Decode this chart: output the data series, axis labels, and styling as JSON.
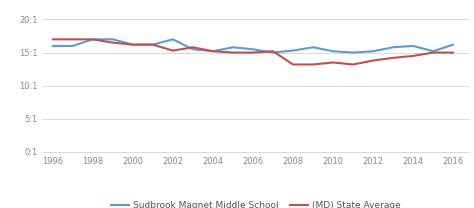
{
  "years": [
    1996,
    1997,
    1998,
    1999,
    2000,
    2001,
    2002,
    2003,
    2004,
    2005,
    2006,
    2007,
    2008,
    2009,
    2010,
    2011,
    2012,
    2013,
    2014,
    2015,
    2016
  ],
  "sudbrook": [
    16.0,
    16.0,
    17.0,
    17.0,
    16.2,
    16.2,
    17.0,
    15.5,
    15.2,
    15.8,
    15.5,
    15.0,
    15.3,
    15.8,
    15.2,
    15.0,
    15.2,
    15.8,
    16.0,
    15.2,
    16.2
  ],
  "md_state": [
    17.0,
    17.0,
    17.0,
    16.5,
    16.2,
    16.2,
    15.3,
    15.8,
    15.2,
    15.0,
    15.0,
    15.2,
    13.2,
    13.2,
    13.5,
    13.2,
    13.8,
    14.2,
    14.5,
    15.0,
    15.0
  ],
  "sudbrook_color": "#5B9BD5",
  "md_state_color": "#C0504D",
  "background_color": "#ffffff",
  "grid_color": "#d9d9d9",
  "yticks": [
    0,
    5,
    10,
    15,
    20
  ],
  "ytick_labels": [
    "0:1",
    "5:1",
    "10:1",
    "15:1",
    "20:1"
  ],
  "ylim": [
    0,
    22
  ],
  "xlim": [
    1995.5,
    2016.8
  ],
  "xticks": [
    1996,
    1998,
    2000,
    2002,
    2004,
    2006,
    2008,
    2010,
    2012,
    2014,
    2016
  ],
  "legend_sudbrook": "Sudbrook Magnet Middle School",
  "legend_md": "(MD) State Average",
  "line_width": 1.5
}
